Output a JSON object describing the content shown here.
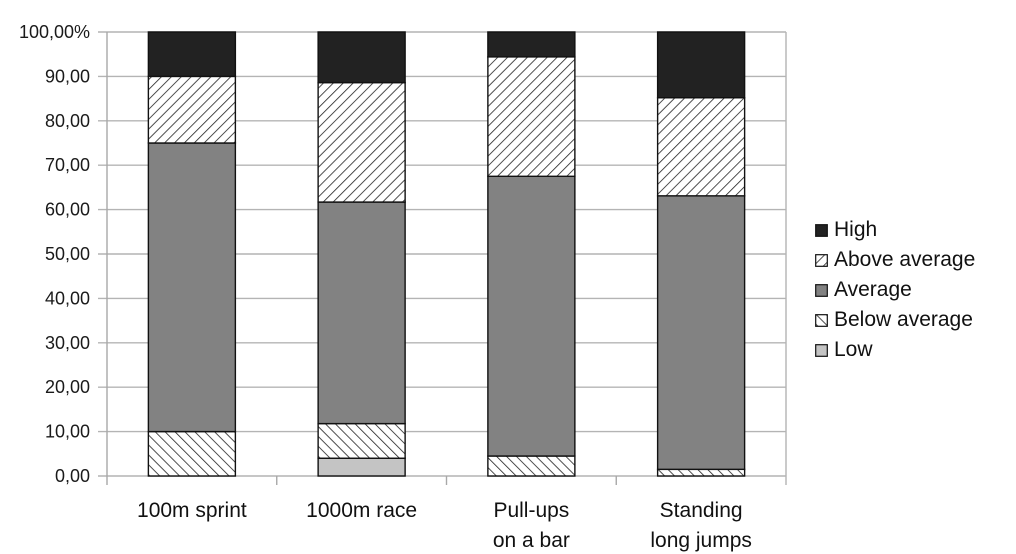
{
  "chart_data": {
    "type": "bar",
    "stacked": true,
    "title": "",
    "xlabel": "",
    "ylabel": "",
    "ylim": [
      0,
      100
    ],
    "y_ticks": [
      "0,00",
      "10,00",
      "20,00",
      "30,00",
      "40,00",
      "50,00",
      "60,00",
      "70,00",
      "80,00",
      "90,00",
      "100,00%"
    ],
    "grid": true,
    "legend_position": "right",
    "categories": [
      [
        "100m sprint"
      ],
      [
        "1000m race"
      ],
      [
        "Pull-ups",
        "on a bar"
      ],
      [
        "Standing",
        "long jumps"
      ]
    ],
    "series": [
      {
        "name": "Low",
        "pattern": "solid",
        "color": "#c4c4c4",
        "values": [
          0,
          4.0,
          0,
          0
        ]
      },
      {
        "name": "Below average",
        "pattern": "hatch-back",
        "color": "#ffffff",
        "values": [
          10.0,
          7.8,
          4.5,
          1.5
        ]
      },
      {
        "name": "Average",
        "pattern": "solid",
        "color": "#828282",
        "values": [
          65.0,
          49.9,
          63.0,
          61.6
        ]
      },
      {
        "name": "Above average",
        "pattern": "hatch-forward",
        "color": "#ffffff",
        "values": [
          15.0,
          26.9,
          26.9,
          22.1
        ]
      },
      {
        "name": "High",
        "pattern": "solid",
        "color": "#222222",
        "values": [
          10.0,
          11.4,
          5.6,
          14.8
        ]
      }
    ],
    "legend_order": [
      "High",
      "Above average",
      "Average",
      "Below average",
      "Low"
    ]
  }
}
